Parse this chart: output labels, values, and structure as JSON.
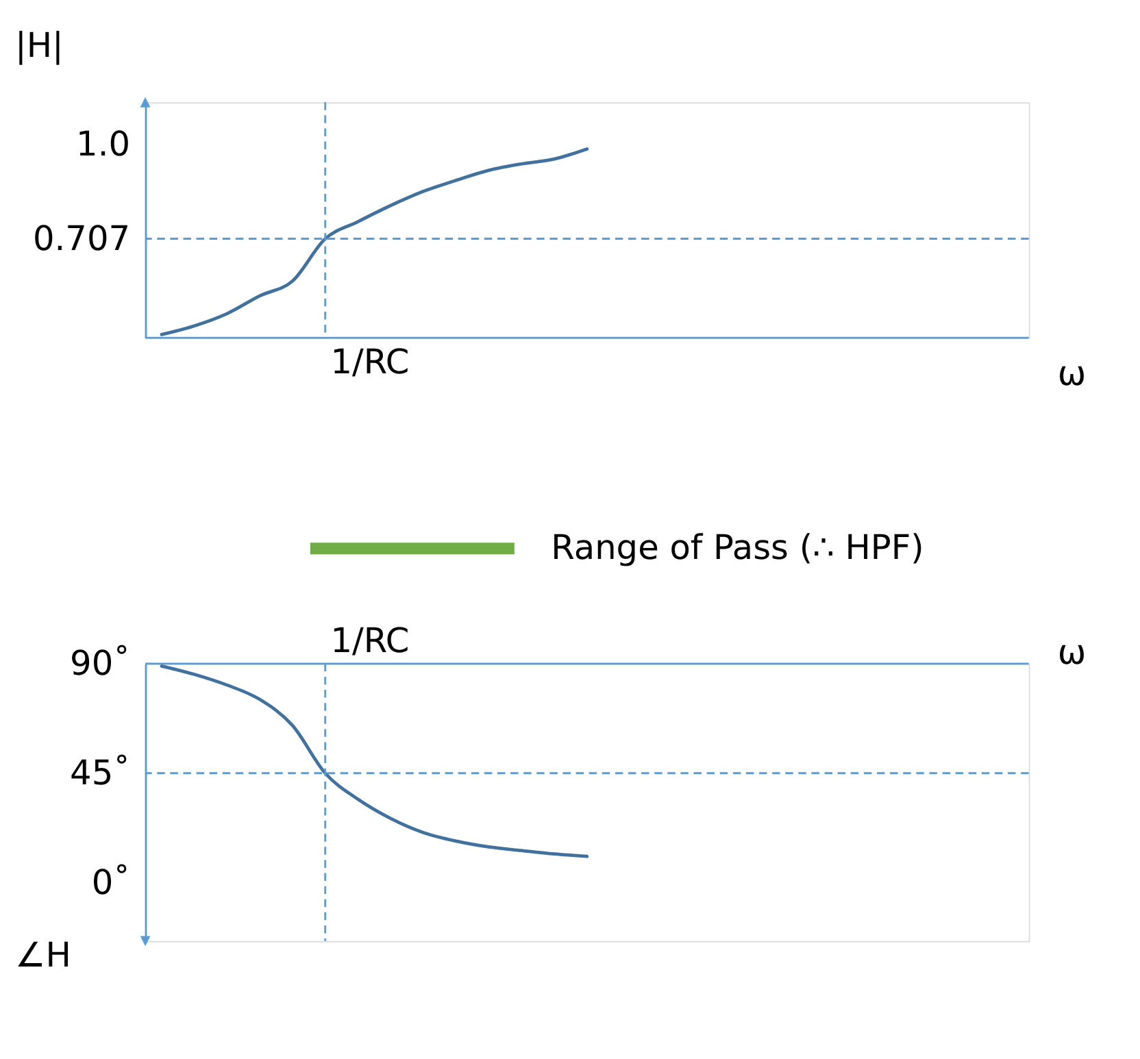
{
  "chart_data": [
    {
      "type": "line",
      "ylabel": "|H|",
      "xlabel": "ω",
      "categories": [
        null,
        null,
        null,
        null,
        null,
        null,
        null,
        null,
        null,
        null,
        null,
        null,
        null,
        null,
        null,
        null,
        null,
        null,
        null,
        null,
        null,
        null,
        null,
        null,
        null,
        null,
        null
      ],
      "ylim": [
        0.4,
        1.13
      ],
      "yticks": [
        {
          "value": 0.707,
          "label": "0.707"
        },
        {
          "value": 1.0,
          "label": "1.0"
        }
      ],
      "grid": false,
      "legend": false,
      "tick_labels": "y",
      "marker": "none",
      "line_style": "solid",
      "series": [
        {
          "color": "#41719c",
          "values": [
            0.41,
            0.437,
            0.475,
            0.53,
            0.576,
            0.707,
            0.76,
            0.81,
            0.854,
            0.888,
            0.919,
            0.939,
            0.954,
            0.985,
            null,
            null,
            null,
            null,
            null,
            null,
            null,
            null,
            null,
            null,
            null,
            null,
            null
          ]
        }
      ],
      "ref_lines": [
        {
          "axis": "y",
          "value": 0.707,
          "line_style": "dashed",
          "color": "#5b9bd5"
        }
      ],
      "annotations": [
        "1/RC"
      ]
    },
    {
      "type": "line",
      "ylabel": "∠H",
      "xlabel": "ω",
      "categories": [
        null,
        null,
        null,
        null,
        null,
        null,
        null,
        null,
        null,
        null,
        null,
        null,
        null,
        null,
        null,
        null,
        null,
        null,
        null,
        null,
        null,
        null,
        null,
        null,
        null,
        null,
        null
      ],
      "ylim": [
        -24,
        90
      ],
      "yticks": [
        {
          "value": 0,
          "label": "0˚"
        },
        {
          "value": 45,
          "label": "45˚"
        },
        {
          "value": 90,
          "label": "90˚"
        }
      ],
      "grid": false,
      "legend": false,
      "tick_labels": "y",
      "marker": "none",
      "line_style": "solid",
      "series": [
        {
          "color": "#41719c",
          "values": [
            89,
            85.6,
            81.2,
            75.3,
            64.6,
            45,
            34.3,
            26.4,
            20.6,
            17.1,
            14.7,
            13.2,
            11.8,
            10.8,
            null,
            null,
            null,
            null,
            null,
            null,
            null,
            null,
            null,
            null,
            null,
            null,
            null
          ]
        }
      ],
      "ref_lines": [
        {
          "axis": "y",
          "value": 45,
          "line_style": "dashed",
          "color": "#5b9bd5"
        }
      ],
      "annotations": [
        "1/RC",
        "Range of Pass (∴ HPF)"
      ]
    }
  ]
}
